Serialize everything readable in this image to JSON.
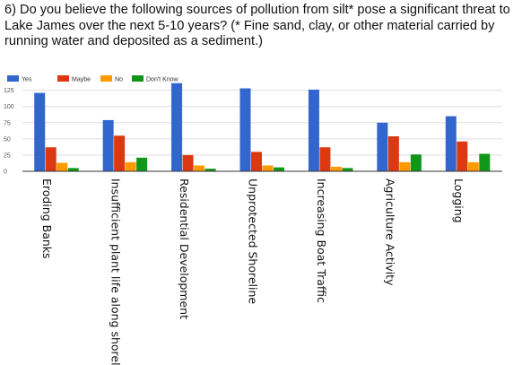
{
  "question": "6) Do you believe the following sources of pollution from silt* pose a significant threat to Lake James over the next 5-10 years? (* Fine sand, clay, or other material carried by running water and deposited as a sediment.)",
  "chart_data": {
    "type": "bar",
    "title": "6) Do you believe the following sources of pollution from silt* pose a significant threat to Lake James over the next 5-10 years? (* Fine sand, clay, or other material carried by running water and deposited as a sediment.)",
    "categories": [
      "Eroding Banks",
      "Insufficient plant life along shoreline",
      "Residential Development",
      "Unprotected Shoreline",
      "Increasing Boat Traffic",
      "Agriculture Activity",
      "Logging"
    ],
    "series": [
      {
        "name": "Yes",
        "color": "#3366cc",
        "values": [
          121,
          79,
          136,
          128,
          126,
          75,
          85
        ]
      },
      {
        "name": "Maybe",
        "color": "#dc3912",
        "values": [
          37,
          55,
          25,
          30,
          37,
          54,
          46
        ]
      },
      {
        "name": "No",
        "color": "#ff9900",
        "values": [
          13,
          14,
          9,
          9,
          7,
          14,
          14
        ]
      },
      {
        "name": "Don't Know",
        "color": "#109618",
        "values": [
          5,
          21,
          4,
          6,
          5,
          26,
          27
        ]
      }
    ],
    "yticks": [
      0,
      25,
      50,
      75,
      100,
      125
    ],
    "ylim": [
      0,
      137
    ],
    "grid": true,
    "legend_position": "top-left",
    "xlabel": "",
    "ylabel": ""
  }
}
